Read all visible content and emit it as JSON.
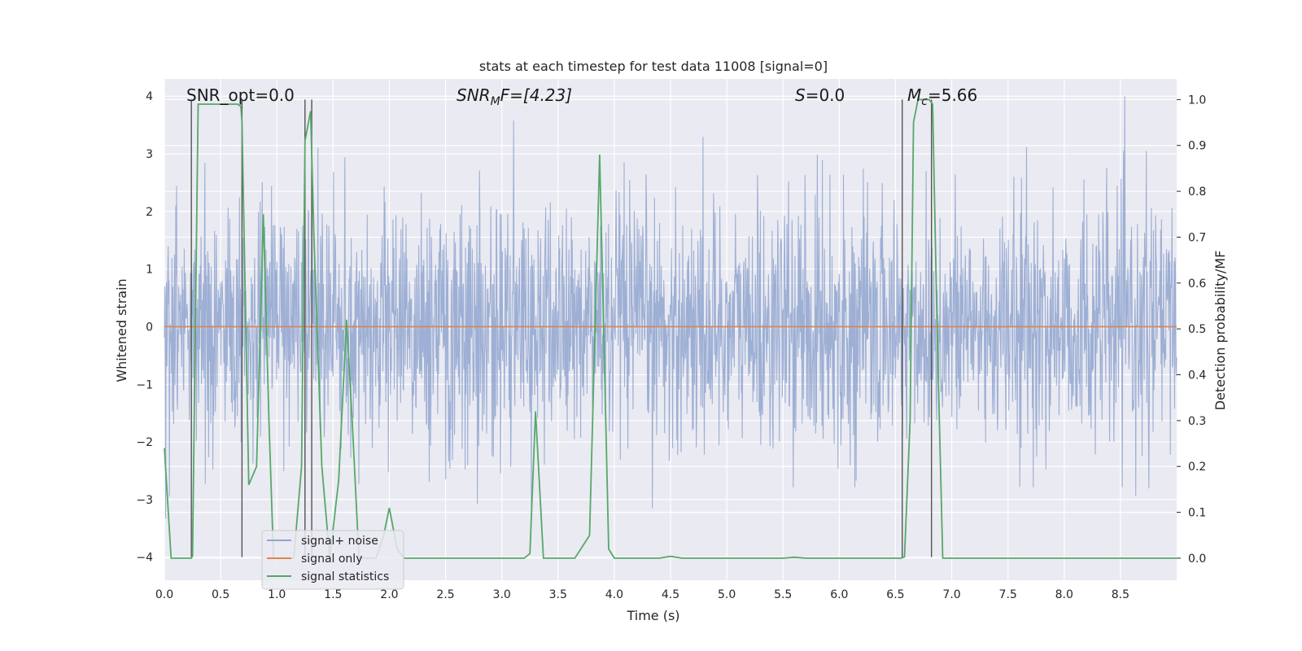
{
  "chart_data": {
    "type": "line",
    "title": "stats at each timestep for test data 11008 [signal=0]",
    "xlabel": "Time (s)",
    "ylabel_left": "Whitened strain",
    "ylabel_right": "Detection probability/MF",
    "xlim": [
      0.0,
      9.0
    ],
    "ylim_left": [
      -4.4,
      4.3
    ],
    "ylim_right": [
      -0.048,
      1.045
    ],
    "x_ticks": [
      "0.0",
      "0.5",
      "1.0",
      "1.5",
      "2.0",
      "2.5",
      "3.0",
      "3.5",
      "4.0",
      "4.5",
      "5.0",
      "5.5",
      "6.0",
      "6.5",
      "7.0",
      "7.5",
      "8.0",
      "8.5"
    ],
    "y_ticks_left": [
      "4",
      "3",
      "2",
      "1",
      "0",
      "−1",
      "−2",
      "−3",
      "−4"
    ],
    "y_ticks_right": [
      "1.0",
      "0.9",
      "0.8",
      "0.7",
      "0.6",
      "0.5",
      "0.4",
      "0.3",
      "0.2",
      "0.1",
      "0.0"
    ],
    "grid": true,
    "legend_position": "lower-left",
    "series": [
      {
        "name": "signal+ noise",
        "color": "#8fa5cf",
        "axis": "left",
        "style": "noise",
        "envelope_max": 4.0,
        "envelope_min": -3.9
      },
      {
        "name": "signal only",
        "color": "#dd8452",
        "axis": "left",
        "constant": 0.0
      },
      {
        "name": "signal statistics",
        "color": "#55a868",
        "axis": "right",
        "x": [
          0.0,
          0.06,
          0.12,
          0.24,
          0.25,
          0.3,
          0.4,
          0.5,
          0.55,
          0.6,
          0.65,
          0.68,
          0.69,
          0.75,
          0.82,
          0.88,
          0.93,
          0.97,
          1.05,
          1.15,
          1.22,
          1.25,
          1.3,
          1.33,
          1.4,
          1.47,
          1.55,
          1.62,
          1.67,
          1.73,
          1.8,
          1.88,
          1.95,
          2.0,
          2.07,
          2.13,
          2.2,
          2.4,
          2.8,
          3.0,
          3.2,
          3.25,
          3.3,
          3.37,
          3.5,
          3.65,
          3.78,
          3.87,
          3.95,
          4.0,
          4.2,
          4.4,
          4.5,
          4.6,
          5.0,
          5.5,
          5.6,
          5.7,
          6.0,
          6.4,
          6.55,
          6.58,
          6.63,
          6.66,
          6.7,
          6.75,
          6.8,
          6.83,
          6.87,
          6.92,
          7.0,
          7.5,
          8.0,
          8.5,
          9.0
        ],
        "y": [
          0.24,
          0.0,
          0.0,
          0.0,
          0.005,
          0.99,
          0.99,
          0.99,
          0.99,
          0.99,
          0.99,
          0.985,
          0.95,
          0.16,
          0.2,
          0.75,
          0.3,
          0.0,
          0.0,
          0.0,
          0.2,
          0.91,
          0.975,
          0.7,
          0.2,
          0.0,
          0.17,
          0.52,
          0.3,
          0.0,
          0.0,
          0.0,
          0.05,
          0.11,
          0.02,
          0.0,
          0.0,
          0.0,
          0.0,
          0.0,
          0.0,
          0.01,
          0.32,
          0.0,
          0.0,
          0.0,
          0.05,
          0.88,
          0.02,
          0.0,
          0.0,
          0.0,
          0.004,
          0.0,
          0.0,
          0.0,
          0.002,
          0.0,
          0.0,
          0.0,
          0.0,
          0.003,
          0.3,
          0.95,
          1.0,
          1.0,
          1.0,
          0.99,
          0.5,
          0.0,
          0.0,
          0.0,
          0.0,
          0.0,
          0.0
        ]
      }
    ],
    "vertical_markers": [
      {
        "x": 0.24,
        "y_top": 1.0,
        "y_bottom": -4.0
      },
      {
        "x": 0.69,
        "y_top": 1.0,
        "y_bottom": -4.0
      },
      {
        "x": 1.25,
        "y_top": 1.0,
        "y_bottom": -4.0
      },
      {
        "x": 1.31,
        "y_top": 1.0,
        "y_bottom": -4.0
      },
      {
        "x": 6.56,
        "y_top": 1.0,
        "y_bottom": -4.0
      },
      {
        "x": 6.82,
        "y_top": 1.0,
        "y_bottom": -4.0
      }
    ],
    "annotations": {
      "snr_opt": "SNR_opt=0.0",
      "snr_mf_main": "SNR",
      "snr_mf_sub": "M",
      "snr_mf_rest": "F=[4.23]",
      "s_main": "S",
      "s_rest": "=0.0",
      "mc_main": "M",
      "mc_sub": "c",
      "mc_rest": "=5.66"
    },
    "colors": {
      "plot_background": "#eaeaf2",
      "grid": "#ffffff",
      "marker_lines": "#555555"
    }
  }
}
